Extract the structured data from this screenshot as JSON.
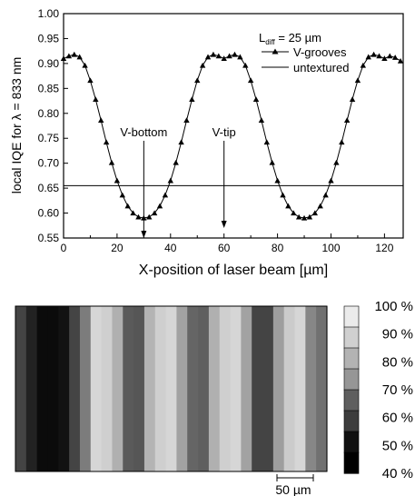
{
  "chart_data": [
    {
      "type": "line",
      "xlabel": "X-position of laser beam [µm]",
      "ylabel": "local IQE for λ = 833 nm",
      "xlim": [
        0,
        127
      ],
      "ylim": [
        0.55,
        1.0
      ],
      "x_ticks": [
        "0",
        "20",
        "40",
        "60",
        "80",
        "100",
        "120"
      ],
      "y_ticks": [
        "0.55",
        "0.60",
        "0.65",
        "0.70",
        "0.75",
        "0.80",
        "0.85",
        "0.90",
        "0.95",
        "1.00"
      ],
      "legend": {
        "title_main": "L",
        "title_sub": "diff",
        "title_rest": " = 25 µm",
        "placement": "top-right",
        "entries": [
          "V-grooves",
          "untextured"
        ]
      },
      "series": [
        {
          "name": "V-grooves",
          "marker": "triangle",
          "x": [
            0,
            2,
            4,
            6,
            8,
            10,
            12,
            14,
            16,
            18,
            20,
            22,
            24,
            26,
            28,
            30,
            32,
            34,
            36,
            38,
            40,
            42,
            44,
            46,
            48,
            50,
            52,
            54,
            56,
            58,
            60,
            62,
            64,
            66,
            68,
            70,
            72,
            74,
            76,
            78,
            80,
            82,
            84,
            86,
            88,
            90,
            92,
            94,
            96,
            98,
            100,
            102,
            104,
            106,
            108,
            110,
            112,
            114,
            116,
            118,
            120,
            122,
            124,
            126
          ],
          "y": [
            0.91,
            0.915,
            0.918,
            0.913,
            0.896,
            0.866,
            0.828,
            0.786,
            0.742,
            0.701,
            0.665,
            0.636,
            0.614,
            0.6,
            0.592,
            0.59,
            0.592,
            0.6,
            0.614,
            0.636,
            0.665,
            0.701,
            0.742,
            0.786,
            0.828,
            0.866,
            0.896,
            0.913,
            0.918,
            0.915,
            0.91,
            0.915,
            0.918,
            0.913,
            0.896,
            0.866,
            0.828,
            0.786,
            0.742,
            0.701,
            0.665,
            0.636,
            0.614,
            0.6,
            0.592,
            0.59,
            0.592,
            0.6,
            0.614,
            0.636,
            0.665,
            0.701,
            0.742,
            0.786,
            0.828,
            0.866,
            0.896,
            0.913,
            0.918,
            0.915,
            0.91,
            0.915,
            0.912,
            0.905
          ]
        },
        {
          "name": "untextured",
          "x": [
            0,
            127
          ],
          "y": [
            0.655,
            0.655
          ]
        }
      ],
      "annotations": [
        {
          "text": "V-bottom",
          "x": 30,
          "y_arrow_from": 0.745,
          "y_arrow_to": 0.55
        },
        {
          "text": "V-tip",
          "x": 60,
          "y_arrow_from": 0.745,
          "y_arrow_to": 0.57
        }
      ]
    },
    {
      "type": "heatmap",
      "colorbar_labels": [
        "100 %",
        "90 %",
        "80 %",
        "70 %",
        "60 %",
        "50 %",
        "40 %"
      ],
      "colorbar_colors": [
        "#ebebeb",
        "#d0d0d0",
        "#b3b3b3",
        "#969696",
        "#5f5f5f",
        "#3d3d3d",
        "#111111",
        "#000000"
      ],
      "scale_bar_label": "50 µm",
      "column_values": [
        0.3,
        0.15,
        0.05,
        0.05,
        0.08,
        0.3,
        0.55,
        0.95,
        0.92,
        0.78,
        0.4,
        0.38,
        0.8,
        0.92,
        0.95,
        0.72,
        0.45,
        0.42,
        0.78,
        0.92,
        0.95,
        0.72,
        0.3,
        0.3,
        0.7,
        0.9,
        0.95,
        0.6,
        0.5
      ]
    }
  ]
}
